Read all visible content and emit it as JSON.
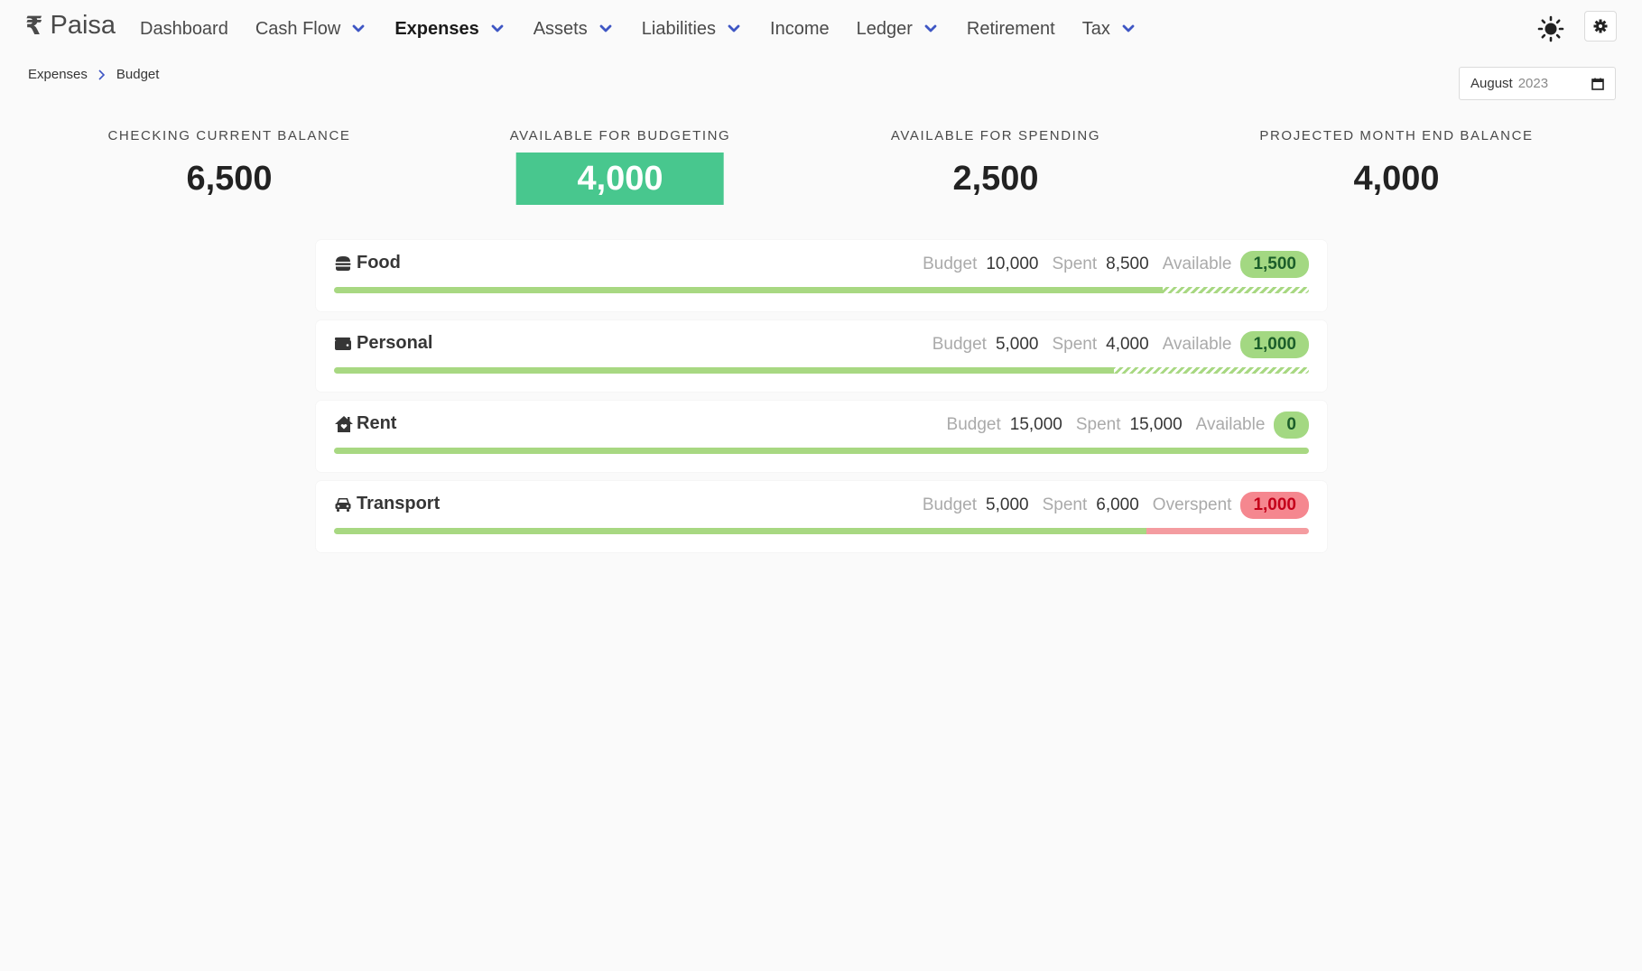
{
  "brand": {
    "symbol": "₹",
    "name": "Paisa"
  },
  "nav": [
    {
      "label": "Dashboard",
      "dropdown": false,
      "active": false
    },
    {
      "label": "Cash Flow",
      "dropdown": true,
      "active": false
    },
    {
      "label": "Expenses",
      "dropdown": true,
      "active": true
    },
    {
      "label": "Assets",
      "dropdown": true,
      "active": false
    },
    {
      "label": "Liabilities",
      "dropdown": true,
      "active": false
    },
    {
      "label": "Income",
      "dropdown": false,
      "active": false
    },
    {
      "label": "Ledger",
      "dropdown": true,
      "active": false
    },
    {
      "label": "Retirement",
      "dropdown": false,
      "active": false
    },
    {
      "label": "Tax",
      "dropdown": true,
      "active": false
    }
  ],
  "header_icons": {
    "theme": "sun-icon",
    "settings": "gear-icon"
  },
  "breadcrumb": {
    "parent": "Expenses",
    "current": "Budget"
  },
  "month_picker": {
    "month": "August",
    "year": "2023"
  },
  "stats": [
    {
      "label": "Checking Current Balance",
      "value": "6,500",
      "highlight": false
    },
    {
      "label": "Available for Budgeting",
      "value": "4,000",
      "highlight": true
    },
    {
      "label": "Available for Spending",
      "value": "2,500",
      "highlight": false
    },
    {
      "label": "Projected Month End Balance",
      "value": "4,000",
      "highlight": false
    }
  ],
  "labels": {
    "budget": "Budget",
    "spent": "Spent",
    "available": "Available",
    "overspent": "Overspent"
  },
  "budgets": [
    {
      "name": "Food",
      "icon": "hamburger-icon",
      "budget": "10,000",
      "spent": "8,500",
      "status_label": "Available",
      "status_value": "1,500",
      "over": false,
      "spent_fraction": 0.85
    },
    {
      "name": "Personal",
      "icon": "wallet-icon",
      "budget": "5,000",
      "spent": "4,000",
      "status_label": "Available",
      "status_value": "1,000",
      "over": false,
      "spent_fraction": 0.8
    },
    {
      "name": "Rent",
      "icon": "house-icon",
      "budget": "15,000",
      "spent": "15,000",
      "status_label": "Available",
      "status_value": "0",
      "over": false,
      "spent_fraction": 1.0
    },
    {
      "name": "Transport",
      "icon": "car-icon",
      "budget": "5,000",
      "spent": "6,000",
      "status_label": "Overspent",
      "status_value": "1,000",
      "over": true,
      "spent_fraction": 0.8333
    }
  ],
  "colors": {
    "accent": "#48c78e",
    "nav_chevron": "#3e56c4",
    "ok_pill": "#a3d882",
    "bad_pill": "#f5878f"
  }
}
